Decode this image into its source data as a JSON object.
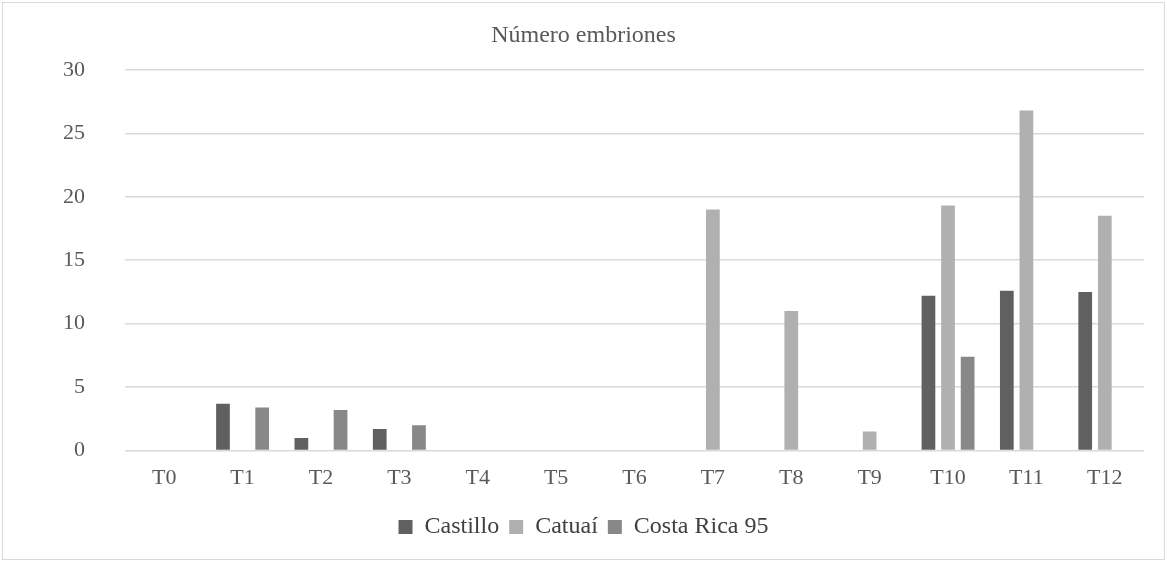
{
  "chart_data": {
    "type": "bar",
    "title": "Número embriones",
    "categories": [
      "T0",
      "T1",
      "T2",
      "T3",
      "T4",
      "T5",
      "T6",
      "T7",
      "T8",
      "T9",
      "T10",
      "T11",
      "T12"
    ],
    "series": [
      {
        "name": "Castillo",
        "color": "#606060",
        "values": [
          0,
          3.7,
          1.0,
          1.7,
          0,
          0,
          0,
          0,
          0,
          0,
          12.2,
          12.6,
          12.5
        ]
      },
      {
        "name": "Catuaí",
        "color": "#b0b0b0",
        "values": [
          0,
          0,
          0,
          0,
          0,
          0,
          0,
          19.0,
          11.0,
          1.5,
          19.3,
          26.8,
          18.5
        ]
      },
      {
        "name": "Costa Rica 95",
        "color": "#888888",
        "values": [
          0,
          3.4,
          3.2,
          2.0,
          0,
          0,
          0,
          0,
          0,
          0,
          7.4,
          0,
          0
        ]
      }
    ],
    "ylim": [
      0,
      30
    ],
    "yticks": [
      0,
      5,
      10,
      15,
      20,
      25,
      30
    ],
    "grid": "y",
    "legend": "bottom"
  }
}
